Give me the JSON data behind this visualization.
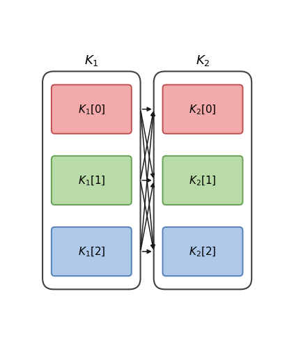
{
  "title_left": "$K_1$",
  "title_right": "$K_2$",
  "boxes_left": [
    "$\\boldsymbol{K}_1[0]$",
    "$\\boldsymbol{K}_1[1]$",
    "$\\boldsymbol{K}_1[2]$"
  ],
  "boxes_right": [
    "$\\boldsymbol{K}_2[0]$",
    "$\\boldsymbol{K}_2[1]$",
    "$\\boldsymbol{K}_2[2]$"
  ],
  "box_colors": [
    "#f2aaaa",
    "#b8dba8",
    "#adc8e8"
  ],
  "box_edge_colors": [
    "#c05050",
    "#68a055",
    "#5580b8"
  ],
  "outer_box_color": "#404040",
  "arrow_color": "#1a1a1a",
  "bg_color": "#ffffff",
  "fig_width": 4.12,
  "fig_height": 5.02,
  "dpi": 100
}
